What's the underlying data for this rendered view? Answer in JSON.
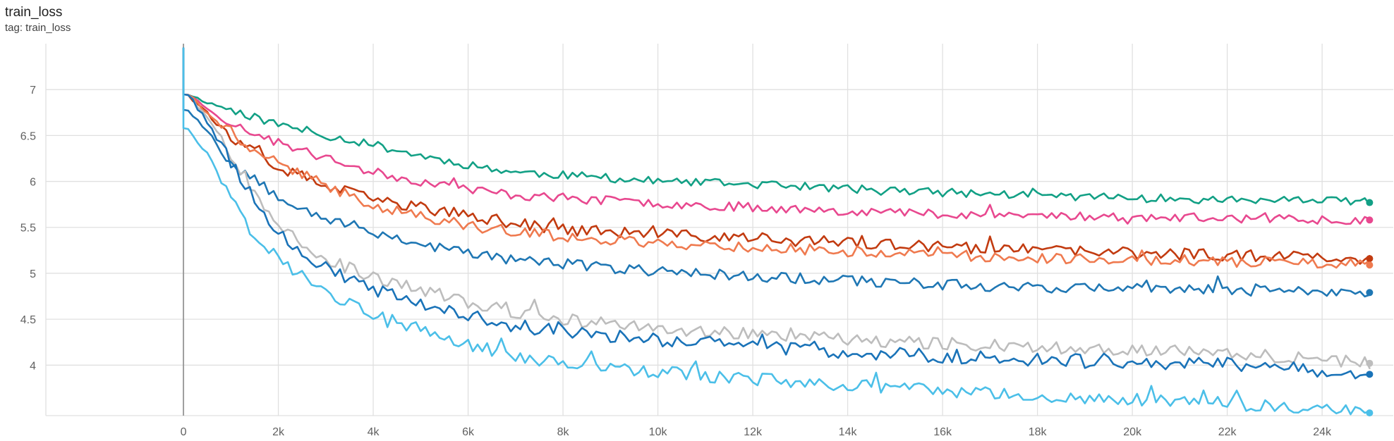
{
  "card": {
    "title": "train_loss",
    "tag_label": "tag: train_loss"
  },
  "chart_data": {
    "type": "line",
    "title": "train_loss",
    "xlabel": "",
    "ylabel": "",
    "x_range": [
      -2900,
      25500
    ],
    "y_range": [
      3.45,
      7.5
    ],
    "x_ticks": [
      0,
      2000,
      4000,
      6000,
      8000,
      10000,
      12000,
      14000,
      16000,
      18000,
      20000,
      22000,
      24000
    ],
    "x_tick_labels": [
      "0",
      "2k",
      "4k",
      "6k",
      "8k",
      "10k",
      "12k",
      "14k",
      "16k",
      "18k",
      "20k",
      "22k",
      "24k"
    ],
    "y_ticks": [
      4,
      4.5,
      5,
      5.5,
      6,
      6.5,
      7
    ],
    "y_tick_labels": [
      "4",
      "4.5",
      "5",
      "5.5",
      "6",
      "6.5",
      "7"
    ],
    "grid": true,
    "legend": "none",
    "series": [
      {
        "color": "#12a085",
        "start": [
          100,
          6.95
        ],
        "anchors": [
          [
            100,
            6.95
          ],
          [
            500,
            6.86
          ],
          [
            1000,
            6.78
          ],
          [
            2000,
            6.62
          ],
          [
            3000,
            6.5
          ],
          [
            4000,
            6.4
          ],
          [
            5000,
            6.28
          ],
          [
            6000,
            6.18
          ],
          [
            7000,
            6.1
          ],
          [
            8000,
            6.07
          ],
          [
            10000,
            6.0
          ],
          [
            12000,
            5.97
          ],
          [
            14000,
            5.92
          ],
          [
            16000,
            5.88
          ],
          [
            18000,
            5.85
          ],
          [
            20000,
            5.82
          ],
          [
            22000,
            5.8
          ],
          [
            25000,
            5.78
          ]
        ],
        "noise": 0.045,
        "seed": 11,
        "end": [
          25000,
          5.77
        ]
      },
      {
        "color": "#e8488f",
        "start": [
          100,
          6.95
        ],
        "anchors": [
          [
            100,
            6.95
          ],
          [
            500,
            6.8
          ],
          [
            1000,
            6.62
          ],
          [
            2000,
            6.42
          ],
          [
            3000,
            6.25
          ],
          [
            4000,
            6.1
          ],
          [
            5000,
            6.0
          ],
          [
            6000,
            5.92
          ],
          [
            7000,
            5.85
          ],
          [
            8000,
            5.82
          ],
          [
            10000,
            5.76
          ],
          [
            12000,
            5.72
          ],
          [
            14000,
            5.68
          ],
          [
            16000,
            5.65
          ],
          [
            18000,
            5.63
          ],
          [
            20000,
            5.61
          ],
          [
            22000,
            5.6
          ],
          [
            25000,
            5.58
          ]
        ],
        "noise": 0.05,
        "seed": 23,
        "end": [
          25000,
          5.58
        ]
      },
      {
        "color": "#c23b10",
        "start": [
          100,
          6.95
        ],
        "anchors": [
          [
            100,
            6.95
          ],
          [
            500,
            6.75
          ],
          [
            1000,
            6.45
          ],
          [
            2000,
            6.15
          ],
          [
            3000,
            5.95
          ],
          [
            4000,
            5.8
          ],
          [
            5000,
            5.72
          ],
          [
            6000,
            5.62
          ],
          [
            7000,
            5.55
          ],
          [
            8000,
            5.48
          ],
          [
            10000,
            5.42
          ],
          [
            12000,
            5.38
          ],
          [
            14000,
            5.33
          ],
          [
            16000,
            5.28
          ],
          [
            18000,
            5.25
          ],
          [
            20000,
            5.22
          ],
          [
            22000,
            5.2
          ],
          [
            25000,
            5.16
          ]
        ],
        "noise": 0.065,
        "seed": 37,
        "end": [
          25000,
          5.16
        ]
      },
      {
        "color": "#ef7a4f",
        "start": [
          100,
          6.95
        ],
        "anchors": [
          [
            100,
            6.95
          ],
          [
            500,
            6.75
          ],
          [
            1000,
            6.5
          ],
          [
            2000,
            6.2
          ],
          [
            3000,
            5.95
          ],
          [
            4000,
            5.75
          ],
          [
            5000,
            5.62
          ],
          [
            6000,
            5.52
          ],
          [
            7000,
            5.45
          ],
          [
            8000,
            5.4
          ],
          [
            10000,
            5.33
          ],
          [
            12000,
            5.28
          ],
          [
            14000,
            5.24
          ],
          [
            16000,
            5.2
          ],
          [
            18000,
            5.17
          ],
          [
            20000,
            5.15
          ],
          [
            22000,
            5.13
          ],
          [
            25000,
            5.09
          ]
        ],
        "noise": 0.06,
        "seed": 41,
        "end": [
          25000,
          5.09
        ]
      },
      {
        "color": "#1f77b4",
        "start": [
          100,
          6.78
        ],
        "anchors": [
          [
            100,
            6.78
          ],
          [
            500,
            6.55
          ],
          [
            1000,
            6.2
          ],
          [
            2000,
            5.85
          ],
          [
            3000,
            5.6
          ],
          [
            4000,
            5.45
          ],
          [
            5000,
            5.32
          ],
          [
            6000,
            5.22
          ],
          [
            7000,
            5.15
          ],
          [
            8000,
            5.1
          ],
          [
            10000,
            5.02
          ],
          [
            12000,
            4.97
          ],
          [
            14000,
            4.92
          ],
          [
            16000,
            4.88
          ],
          [
            18000,
            4.85
          ],
          [
            20000,
            4.83
          ],
          [
            22000,
            4.82
          ],
          [
            25000,
            4.79
          ]
        ],
        "noise": 0.06,
        "seed": 53,
        "end": [
          25000,
          4.79
        ]
      },
      {
        "color": "#bdbdbd",
        "start": [
          100,
          6.95
        ],
        "anchors": [
          [
            100,
            6.95
          ],
          [
            500,
            6.7
          ],
          [
            1000,
            6.3
          ],
          [
            1500,
            5.9
          ],
          [
            2000,
            5.55
          ],
          [
            3000,
            5.15
          ],
          [
            4000,
            4.95
          ],
          [
            5000,
            4.82
          ],
          [
            6000,
            4.68
          ],
          [
            7000,
            4.58
          ],
          [
            8000,
            4.5
          ],
          [
            10000,
            4.4
          ],
          [
            12000,
            4.33
          ],
          [
            14000,
            4.28
          ],
          [
            16000,
            4.24
          ],
          [
            18000,
            4.2
          ],
          [
            20000,
            4.17
          ],
          [
            22000,
            4.14
          ],
          [
            25000,
            4.02
          ]
        ],
        "noise": 0.07,
        "seed": 67,
        "end": [
          25000,
          4.02
        ]
      },
      {
        "color": "#1a73b8",
        "start": [
          100,
          6.95
        ],
        "anchors": [
          [
            100,
            6.95
          ],
          [
            500,
            6.65
          ],
          [
            1000,
            6.2
          ],
          [
            1500,
            5.8
          ],
          [
            2000,
            5.45
          ],
          [
            3000,
            5.05
          ],
          [
            4000,
            4.82
          ],
          [
            5000,
            4.65
          ],
          [
            6000,
            4.52
          ],
          [
            7000,
            4.43
          ],
          [
            8000,
            4.36
          ],
          [
            10000,
            4.28
          ],
          [
            12000,
            4.2
          ],
          [
            14000,
            4.14
          ],
          [
            16000,
            4.1
          ],
          [
            18000,
            4.06
          ],
          [
            20000,
            4.03
          ],
          [
            22000,
            4.01
          ],
          [
            25000,
            3.9
          ]
        ],
        "noise": 0.075,
        "seed": 79,
        "end": [
          25000,
          3.9
        ]
      },
      {
        "color": "#4bbfe8",
        "start": [
          100,
          6.58
        ],
        "anchors": [
          [
            100,
            6.58
          ],
          [
            500,
            6.3
          ],
          [
            1000,
            5.85
          ],
          [
            1500,
            5.45
          ],
          [
            2000,
            5.15
          ],
          [
            3000,
            4.8
          ],
          [
            4000,
            4.55
          ],
          [
            5000,
            4.38
          ],
          [
            6000,
            4.22
          ],
          [
            7000,
            4.1
          ],
          [
            8000,
            4.02
          ],
          [
            10000,
            3.92
          ],
          [
            12000,
            3.85
          ],
          [
            14000,
            3.78
          ],
          [
            16000,
            3.72
          ],
          [
            18000,
            3.66
          ],
          [
            20000,
            3.62
          ],
          [
            22000,
            3.58
          ],
          [
            25000,
            3.48
          ]
        ],
        "noise": 0.07,
        "seed": 97,
        "end": [
          25000,
          3.48
        ]
      }
    ]
  }
}
